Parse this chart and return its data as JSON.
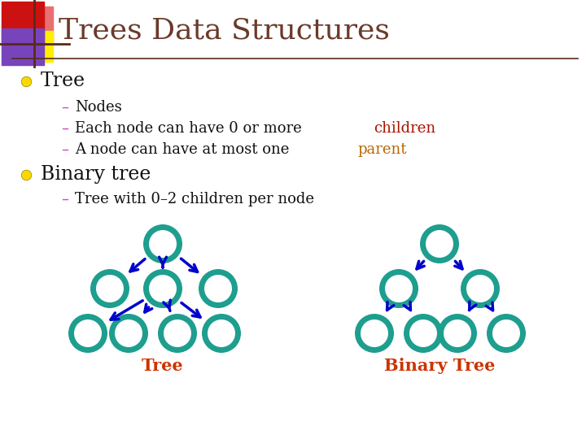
{
  "title": "Trees Data Structures",
  "title_color": "#6B3A2A",
  "title_fontsize": 26,
  "bg_color": "#FFFFFF",
  "bullet_color": "#FFD700",
  "dash_color": "#CC44CC",
  "text_color": "#111111",
  "bullet1": "Tree",
  "sub1": "Nodes",
  "sub2_prefix": "Each node can have 0 or more ",
  "sub2_highlight": "children",
  "sub2_highlight_color": "#AA1100",
  "sub3_prefix": "A node can have at most one ",
  "sub3_highlight": "parent",
  "sub3_highlight_color": "#BB6600",
  "bullet2": "Binary tree",
  "sub4": "Tree with 0–2 children per node",
  "node_color": "#1E9E8E",
  "arrow_color": "#0000CC",
  "label1": "Tree",
  "label2": "Binary Tree",
  "label_color": "#CC3300",
  "rect_red": "#CC1111",
  "rect_pink": "#E87070",
  "rect_purple": "#7744BB",
  "rect_yellow": "#FFEE00",
  "line_color": "#5A2A1A"
}
